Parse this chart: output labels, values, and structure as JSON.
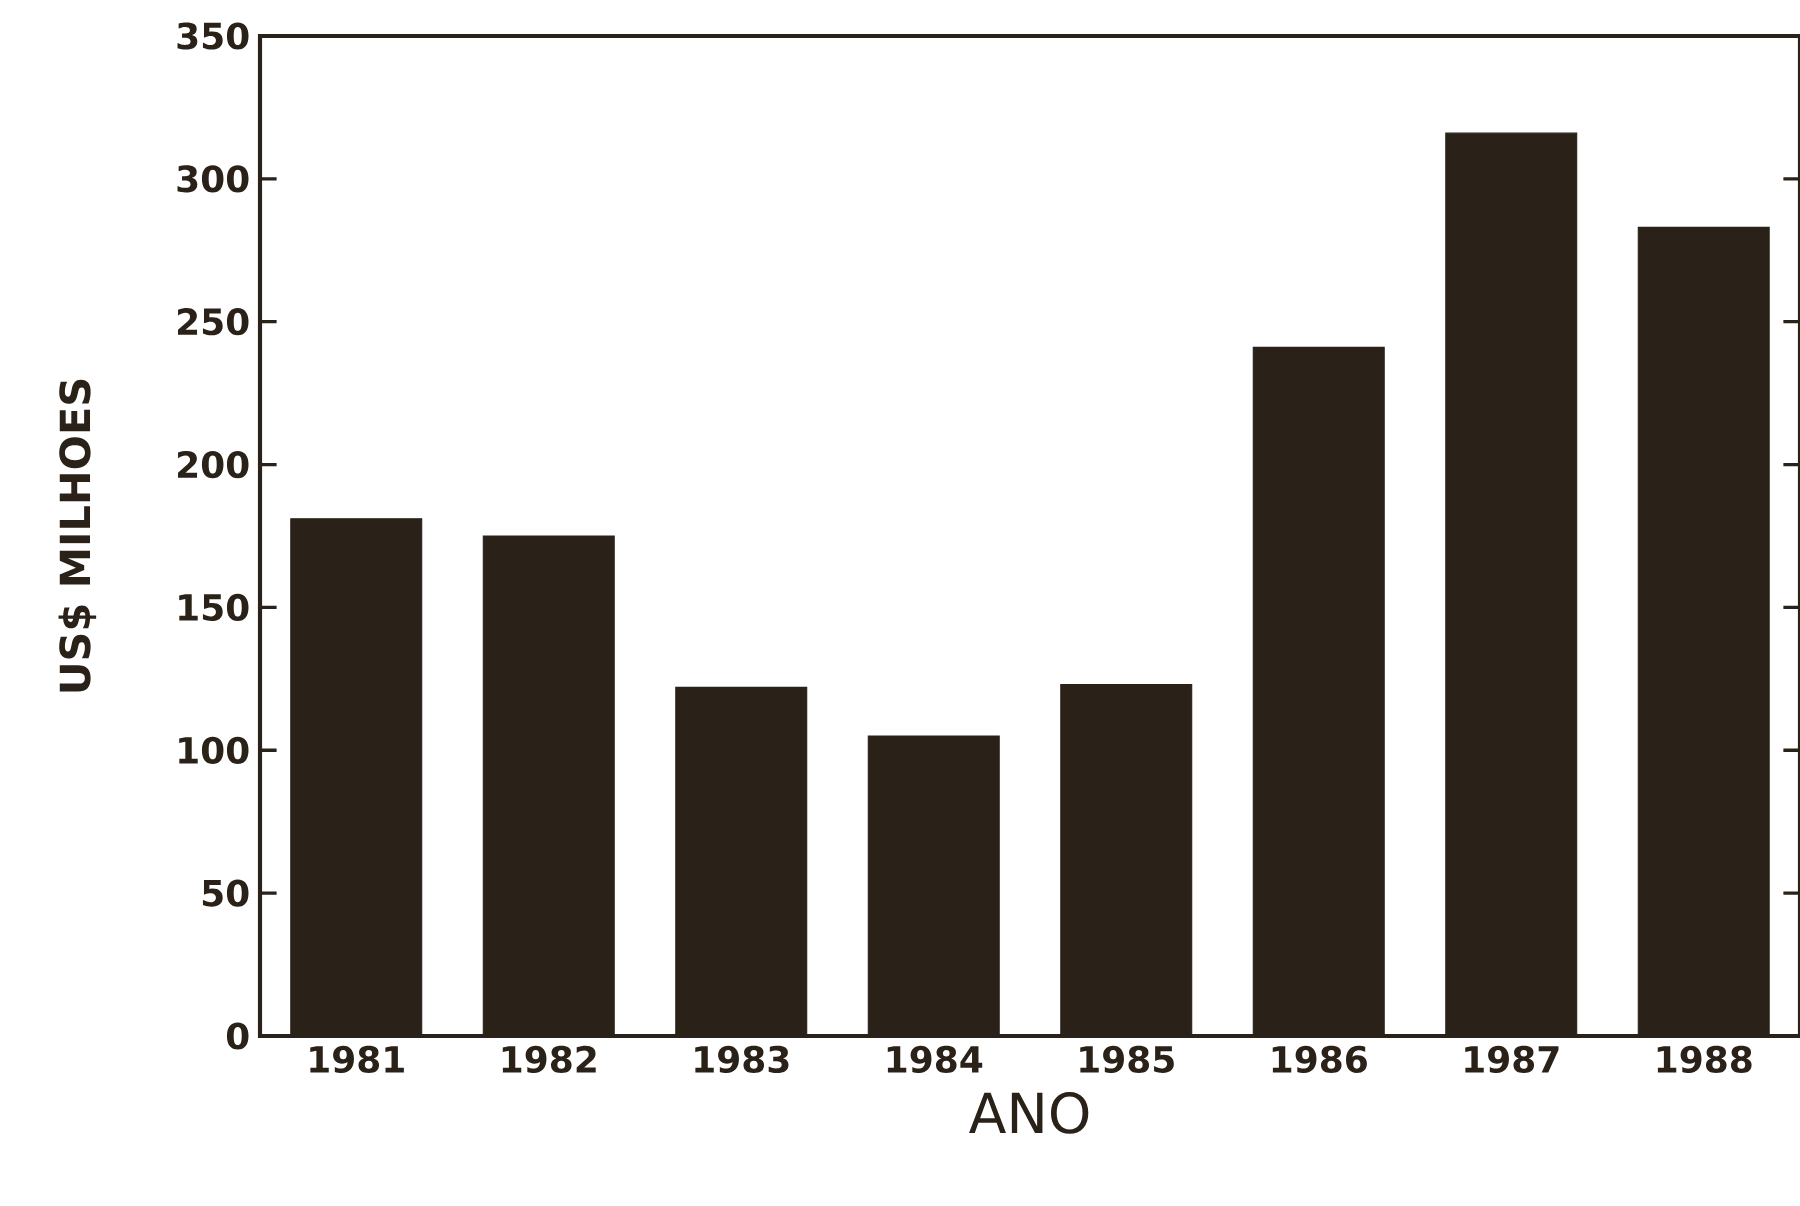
{
  "chart_data": {
    "type": "bar",
    "xlabel": "ANO",
    "ylabel": "US$ MILHOES",
    "categories": [
      "1981",
      "1982",
      "1983",
      "1984",
      "1985",
      "1986",
      "1987",
      "1988"
    ],
    "values": [
      181,
      175,
      122,
      105,
      123,
      241,
      316,
      283
    ],
    "color": "#2a2218",
    "ylim": [
      0,
      350
    ],
    "yticks": [
      0,
      50,
      100,
      150,
      200,
      250,
      300,
      350
    ],
    "grid": false
  }
}
